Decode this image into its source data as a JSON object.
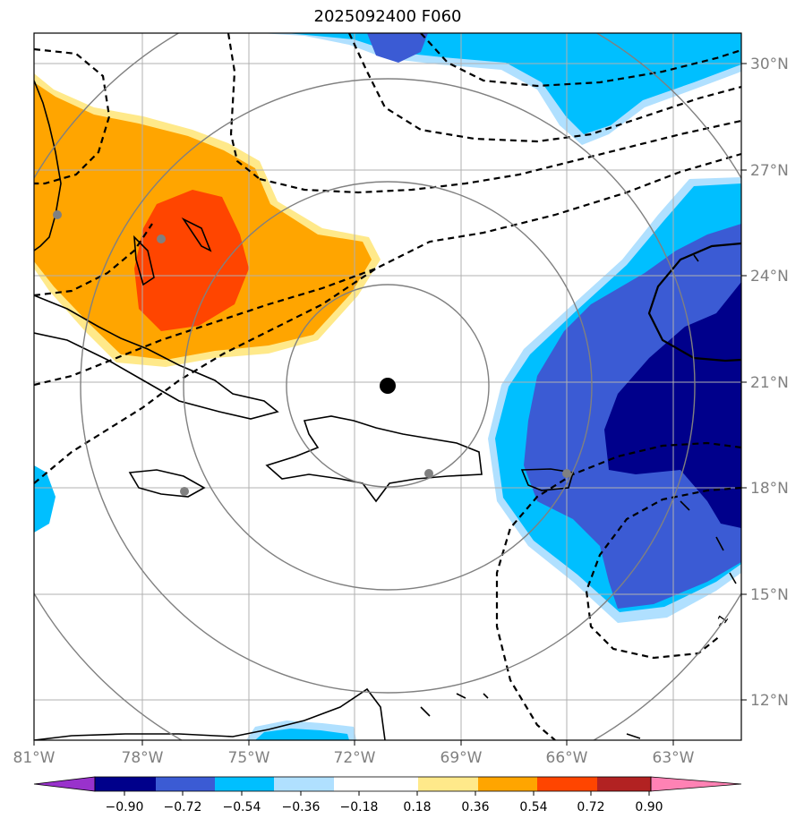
{
  "title": "2025092400 F060",
  "chart_data": {
    "type": "heatmap",
    "title": "2025092400 F060",
    "x_ticks": [
      "81°W",
      "78°W",
      "75°W",
      "72°W",
      "69°W",
      "66°W",
      "63°W"
    ],
    "x_tick_values": [
      -81,
      -78,
      -75,
      -72,
      -69,
      -66,
      -63
    ],
    "y_ticks": [
      "12°N",
      "15°N",
      "18°N",
      "21°N",
      "24°N",
      "27°N",
      "30°N"
    ],
    "y_tick_values": [
      12,
      15,
      18,
      21,
      24,
      27,
      30
    ],
    "xlim": [
      -81,
      -61
    ],
    "ylim": [
      11,
      31
    ],
    "grid": true,
    "center_marker": {
      "lon": -71,
      "lat": 20.9
    },
    "range_rings_deg": [
      3,
      6,
      9,
      12
    ],
    "stations": [
      {
        "lon": -80.4,
        "lat": 25.7
      },
      {
        "lon": -77.4,
        "lat": 25.0
      },
      {
        "lon": -76.8,
        "lat": 17.9
      },
      {
        "lon": -69.9,
        "lat": 18.4
      },
      {
        "lon": -66.0,
        "lat": 18.4
      }
    ],
    "colorbar": {
      "levels": [
        "−0.90",
        "−0.72",
        "−0.54",
        "−0.36",
        "−0.18",
        "0.18",
        "0.36",
        "0.54",
        "0.72",
        "0.90"
      ],
      "colors": [
        "#9932cc",
        "#00008b",
        "#3b5bd4",
        "#00bfff",
        "#b0e0ff",
        "#ffffff",
        "#ffe98a",
        "#ffa500",
        "#ff4500",
        "#b22222",
        "#ff82b4"
      ],
      "extend": "both"
    },
    "contour_label": "-1"
  }
}
